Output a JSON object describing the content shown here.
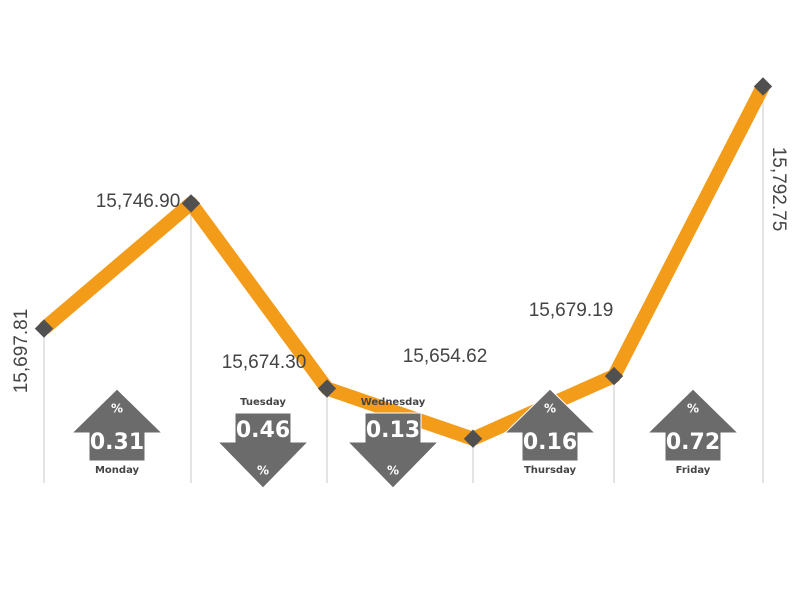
{
  "colors": {
    "line": "#f39c1a",
    "marker": "#505050",
    "arrow": "#6b6b6b",
    "gridline": "#c8c8c8",
    "text": "#444444"
  },
  "percent_symbol": "%",
  "chart_data": {
    "type": "line",
    "title": "",
    "xlabel": "",
    "ylabel": "",
    "ylim": [
      15640,
      15800
    ],
    "grid": "vertical drop lines at each point",
    "points": [
      {
        "label": "",
        "value": 15697.81,
        "value_text": "15,697.81"
      },
      {
        "label": "",
        "value": 15746.9,
        "value_text": "15,746.90"
      },
      {
        "label": "",
        "value": 15674.3,
        "value_text": "15,674.30"
      },
      {
        "label": "",
        "value": 15654.62,
        "value_text": "15,654.62"
      },
      {
        "label": "",
        "value": 15679.19,
        "value_text": "15,679.19"
      },
      {
        "label": "",
        "value": 15792.75,
        "value_text": "15,792.75"
      }
    ],
    "daily_changes": [
      {
        "day": "Monday",
        "percent": "0.31",
        "direction": "up"
      },
      {
        "day": "Tuesday",
        "percent": "0.46",
        "direction": "down"
      },
      {
        "day": "Wednesday",
        "percent": "0.13",
        "direction": "down"
      },
      {
        "day": "Thursday",
        "percent": "0.16",
        "direction": "up"
      },
      {
        "day": "Friday",
        "percent": "0.72",
        "direction": "up"
      }
    ]
  }
}
